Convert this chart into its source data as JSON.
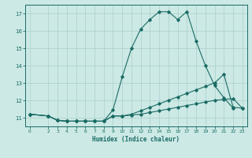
{
  "xlabel": "Humidex (Indice chaleur)",
  "background_color": "#cce9e5",
  "grid_color": "#aacfcb",
  "line_color": "#1a6b64",
  "spine_color": "#1a6b64",
  "series": {
    "upper": {
      "x": [
        0,
        2,
        3,
        4,
        5,
        6,
        7,
        8,
        9,
        10,
        11,
        12,
        13,
        14,
        15,
        16,
        17,
        18,
        19,
        20,
        21,
        22
      ],
      "y": [
        11.2,
        11.1,
        10.85,
        10.8,
        10.8,
        10.8,
        10.8,
        10.8,
        11.45,
        13.35,
        15.0,
        16.1,
        16.65,
        17.1,
        17.1,
        16.65,
        17.1,
        15.4,
        14.0,
        12.85,
        12.15,
        11.55
      ]
    },
    "middle": {
      "x": [
        0,
        2,
        3,
        4,
        5,
        6,
        7,
        8,
        9,
        10,
        11,
        12,
        13,
        14,
        15,
        16,
        17,
        18,
        19,
        20,
        21,
        22,
        23
      ],
      "y": [
        11.2,
        11.1,
        10.85,
        10.8,
        10.8,
        10.8,
        10.8,
        10.8,
        11.1,
        11.1,
        11.2,
        11.4,
        11.6,
        11.8,
        12.0,
        12.2,
        12.4,
        12.6,
        12.8,
        13.0,
        13.5,
        11.6,
        11.55
      ]
    },
    "lower": {
      "x": [
        0,
        2,
        3,
        4,
        5,
        6,
        7,
        8,
        9,
        10,
        11,
        12,
        13,
        14,
        15,
        16,
        17,
        18,
        19,
        20,
        21,
        22,
        23
      ],
      "y": [
        11.2,
        11.1,
        10.85,
        10.8,
        10.8,
        10.8,
        10.8,
        10.8,
        11.1,
        11.1,
        11.15,
        11.2,
        11.3,
        11.4,
        11.5,
        11.6,
        11.7,
        11.8,
        11.9,
        12.0,
        12.05,
        12.1,
        11.55
      ]
    }
  },
  "ylim": [
    10.5,
    17.5
  ],
  "xlim": [
    -0.5,
    23.5
  ],
  "yticks": [
    11,
    12,
    13,
    14,
    15,
    16,
    17
  ],
  "xticks": [
    0,
    2,
    3,
    4,
    5,
    6,
    7,
    8,
    9,
    10,
    11,
    12,
    13,
    14,
    15,
    16,
    17,
    18,
    19,
    20,
    21,
    22,
    23
  ],
  "xtick_labels": [
    "0",
    "2",
    "3",
    "4",
    "5",
    "6",
    "7",
    "8",
    "9",
    "10",
    "11",
    "12",
    "13",
    "14",
    "15",
    "16",
    "17",
    "18",
    "19",
    "20",
    "21",
    "22",
    "23"
  ]
}
